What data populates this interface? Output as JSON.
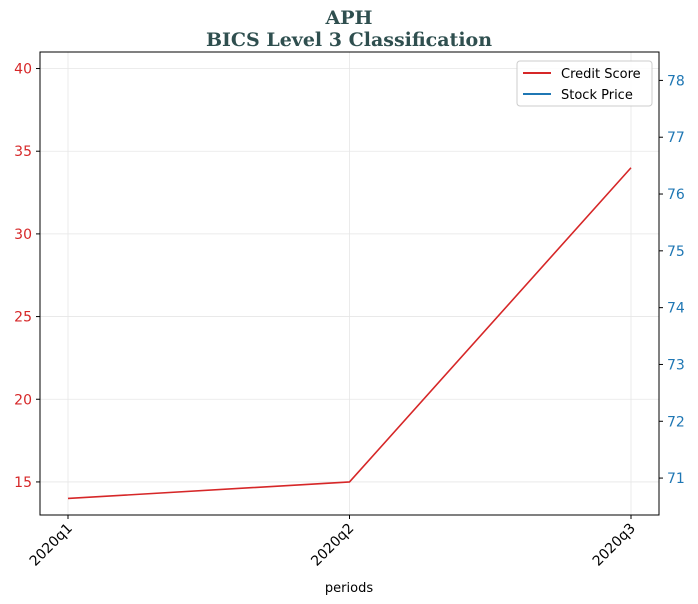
{
  "chart_data": {
    "type": "line",
    "title": "APH",
    "subtitle": "BICS Level 3 Classification",
    "xlabel": "periods",
    "categories": [
      "2020q1",
      "2020q2",
      "2020q3"
    ],
    "series": [
      {
        "name": "Credit Score",
        "axis": "left",
        "color": "#d62728",
        "values": [
          14,
          15,
          34
        ]
      },
      {
        "name": "Stock Price",
        "axis": "right",
        "color": "#1f77b4",
        "values": [
          null,
          null,
          null
        ]
      }
    ],
    "y_left": {
      "range": [
        13,
        41
      ],
      "ticks": [
        15,
        20,
        25,
        30,
        35,
        40
      ],
      "color": "#d62728"
    },
    "y_right": {
      "range": [
        70.35,
        78.5
      ],
      "ticks": [
        71,
        72,
        73,
        74,
        75,
        76,
        77,
        78
      ],
      "color": "#1f77b4"
    },
    "grid": true,
    "legend_position": "top-right",
    "title_color": "#2f4f4f"
  }
}
